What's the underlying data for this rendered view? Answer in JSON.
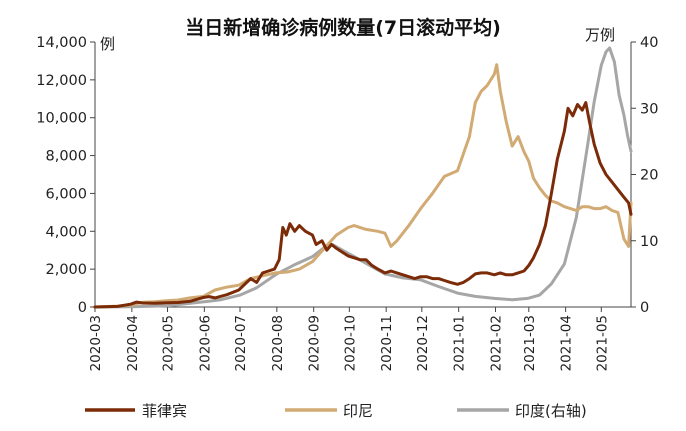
{
  "chart_data": {
    "type": "line",
    "title": "当日新增确诊病例数量(7日滚动平均)",
    "y_left": {
      "unit": "例",
      "min": 0,
      "max": 14000,
      "ticks": [
        "0",
        "2,000",
        "4,000",
        "6,000",
        "8,000",
        "10,000",
        "12,000",
        "14,000"
      ]
    },
    "y_right": {
      "unit": "万例",
      "min": 0,
      "max": 40,
      "ticks": [
        "0",
        "10",
        "20",
        "30",
        "40"
      ]
    },
    "x_ticks": [
      "2020-03",
      "2020-04",
      "2020-05",
      "2020-06",
      "2020-07",
      "2020-08",
      "2020-09",
      "2020-10",
      "2020-11",
      "2020-12",
      "2021-01",
      "2021-02",
      "2021-03",
      "2021-04",
      "2021-05"
    ],
    "x_range": [
      "2020-03-01",
      "2021-05-26"
    ],
    "series": [
      {
        "name": "菲律宾",
        "color": "#7B2B07",
        "axis": "left",
        "points": [
          [
            "2020-03-01",
            0
          ],
          [
            "2020-03-20",
            30
          ],
          [
            "2020-03-31",
            150
          ],
          [
            "2020-04-05",
            260
          ],
          [
            "2020-04-10",
            210
          ],
          [
            "2020-04-20",
            200
          ],
          [
            "2020-05-01",
            220
          ],
          [
            "2020-05-10",
            240
          ],
          [
            "2020-05-20",
            300
          ],
          [
            "2020-05-31",
            500
          ],
          [
            "2020-06-05",
            550
          ],
          [
            "2020-06-10",
            480
          ],
          [
            "2020-06-20",
            650
          ],
          [
            "2020-06-30",
            900
          ],
          [
            "2020-07-05",
            1200
          ],
          [
            "2020-07-10",
            1500
          ],
          [
            "2020-07-15",
            1300
          ],
          [
            "2020-07-20",
            1800
          ],
          [
            "2020-07-25",
            1900
          ],
          [
            "2020-07-30",
            2000
          ],
          [
            "2020-08-03",
            2500
          ],
          [
            "2020-08-06",
            4200
          ],
          [
            "2020-08-09",
            3800
          ],
          [
            "2020-08-12",
            4400
          ],
          [
            "2020-08-16",
            4000
          ],
          [
            "2020-08-20",
            4300
          ],
          [
            "2020-08-25",
            4000
          ],
          [
            "2020-08-31",
            3800
          ],
          [
            "2020-09-03",
            3300
          ],
          [
            "2020-09-08",
            3500
          ],
          [
            "2020-09-12",
            3000
          ],
          [
            "2020-09-16",
            3300
          ],
          [
            "2020-09-20",
            3100
          ],
          [
            "2020-09-25",
            2900
          ],
          [
            "2020-09-30",
            2700
          ],
          [
            "2020-10-05",
            2600
          ],
          [
            "2020-10-10",
            2500
          ],
          [
            "2020-10-15",
            2500
          ],
          [
            "2020-10-20",
            2200
          ],
          [
            "2020-10-25",
            2000
          ],
          [
            "2020-10-31",
            1800
          ],
          [
            "2020-11-05",
            1900
          ],
          [
            "2020-11-10",
            1800
          ],
          [
            "2020-11-15",
            1700
          ],
          [
            "2020-11-20",
            1600
          ],
          [
            "2020-11-25",
            1500
          ],
          [
            "2020-11-30",
            1600
          ],
          [
            "2020-12-05",
            1600
          ],
          [
            "2020-12-10",
            1500
          ],
          [
            "2020-12-15",
            1500
          ],
          [
            "2020-12-20",
            1400
          ],
          [
            "2020-12-25",
            1300
          ],
          [
            "2020-12-31",
            1200
          ],
          [
            "2021-01-05",
            1300
          ],
          [
            "2021-01-10",
            1500
          ],
          [
            "2021-01-15",
            1750
          ],
          [
            "2021-01-20",
            1800
          ],
          [
            "2021-01-25",
            1800
          ],
          [
            "2021-01-31",
            1700
          ],
          [
            "2021-02-05",
            1800
          ],
          [
            "2021-02-10",
            1700
          ],
          [
            "2021-02-15",
            1700
          ],
          [
            "2021-02-20",
            1800
          ],
          [
            "2021-02-25",
            1900
          ],
          [
            "2021-03-01",
            2200
          ],
          [
            "2021-03-05",
            2600
          ],
          [
            "2021-03-10",
            3300
          ],
          [
            "2021-03-15",
            4300
          ],
          [
            "2021-03-20",
            6000
          ],
          [
            "2021-03-25",
            7800
          ],
          [
            "2021-03-31",
            9300
          ],
          [
            "2021-04-03",
            10500
          ],
          [
            "2021-04-07",
            10100
          ],
          [
            "2021-04-11",
            10700
          ],
          [
            "2021-04-15",
            10400
          ],
          [
            "2021-04-18",
            10800
          ],
          [
            "2021-04-21",
            9800
          ],
          [
            "2021-04-25",
            8600
          ],
          [
            "2021-04-30",
            7600
          ],
          [
            "2021-05-05",
            7000
          ],
          [
            "2021-05-10",
            6600
          ],
          [
            "2021-05-15",
            6200
          ],
          [
            "2021-05-20",
            5800
          ],
          [
            "2021-05-24",
            5500
          ],
          [
            "2021-05-26",
            4900
          ]
        ]
      },
      {
        "name": "印尼",
        "color": "#D2AA73",
        "axis": "left",
        "points": [
          [
            "2020-03-01",
            0
          ],
          [
            "2020-03-20",
            50
          ],
          [
            "2020-03-31",
            100
          ],
          [
            "2020-04-10",
            250
          ],
          [
            "2020-04-20",
            280
          ],
          [
            "2020-04-30",
            330
          ],
          [
            "2020-05-10",
            370
          ],
          [
            "2020-05-20",
            480
          ],
          [
            "2020-05-31",
            560
          ],
          [
            "2020-06-10",
            900
          ],
          [
            "2020-06-20",
            1050
          ],
          [
            "2020-06-30",
            1150
          ],
          [
            "2020-07-10",
            1500
          ],
          [
            "2020-07-20",
            1650
          ],
          [
            "2020-07-31",
            1800
          ],
          [
            "2020-08-10",
            1850
          ],
          [
            "2020-08-20",
            2000
          ],
          [
            "2020-08-31",
            2400
          ],
          [
            "2020-09-10",
            3100
          ],
          [
            "2020-09-20",
            3800
          ],
          [
            "2020-09-30",
            4200
          ],
          [
            "2020-10-05",
            4300
          ],
          [
            "2020-10-15",
            4100
          ],
          [
            "2020-10-25",
            4000
          ],
          [
            "2020-10-31",
            3900
          ],
          [
            "2020-11-05",
            3200
          ],
          [
            "2020-11-10",
            3500
          ],
          [
            "2020-11-20",
            4300
          ],
          [
            "2020-11-30",
            5200
          ],
          [
            "2020-12-10",
            6000
          ],
          [
            "2020-12-20",
            6900
          ],
          [
            "2020-12-31",
            7200
          ],
          [
            "2021-01-05",
            8100
          ],
          [
            "2021-01-10",
            9000
          ],
          [
            "2021-01-15",
            10800
          ],
          [
            "2021-01-20",
            11400
          ],
          [
            "2021-01-25",
            11700
          ],
          [
            "2021-01-31",
            12300
          ],
          [
            "2021-02-02",
            12800
          ],
          [
            "2021-02-05",
            11400
          ],
          [
            "2021-02-10",
            9800
          ],
          [
            "2021-02-15",
            8500
          ],
          [
            "2021-02-20",
            9000
          ],
          [
            "2021-02-25",
            8200
          ],
          [
            "2021-03-01",
            7700
          ],
          [
            "2021-03-05",
            6800
          ],
          [
            "2021-03-10",
            6300
          ],
          [
            "2021-03-15",
            5900
          ],
          [
            "2021-03-20",
            5600
          ],
          [
            "2021-03-25",
            5500
          ],
          [
            "2021-03-31",
            5300
          ],
          [
            "2021-04-05",
            5200
          ],
          [
            "2021-04-10",
            5100
          ],
          [
            "2021-04-15",
            5300
          ],
          [
            "2021-04-20",
            5300
          ],
          [
            "2021-04-25",
            5200
          ],
          [
            "2021-04-30",
            5200
          ],
          [
            "2021-05-05",
            5300
          ],
          [
            "2021-05-10",
            5100
          ],
          [
            "2021-05-15",
            5000
          ],
          [
            "2021-05-20",
            3600
          ],
          [
            "2021-05-24",
            3200
          ],
          [
            "2021-05-26",
            5500
          ]
        ]
      },
      {
        "name": "印度(右轴)",
        "color": "#A6A6A6",
        "axis": "right",
        "points": [
          [
            "2020-03-01",
            0
          ],
          [
            "2020-04-01",
            0.05
          ],
          [
            "2020-05-01",
            0.2
          ],
          [
            "2020-06-01",
            0.8
          ],
          [
            "2020-06-15",
            1.1
          ],
          [
            "2020-07-01",
            1.8
          ],
          [
            "2020-07-15",
            2.9
          ],
          [
            "2020-08-01",
            5.0
          ],
          [
            "2020-08-15",
            6.3
          ],
          [
            "2020-08-31",
            7.6
          ],
          [
            "2020-09-10",
            9.0
          ],
          [
            "2020-09-17",
            9.4
          ],
          [
            "2020-09-25",
            8.6
          ],
          [
            "2020-10-05",
            7.6
          ],
          [
            "2020-10-15",
            6.6
          ],
          [
            "2020-10-31",
            5.0
          ],
          [
            "2020-11-15",
            4.4
          ],
          [
            "2020-11-30",
            4.1
          ],
          [
            "2020-12-15",
            3.1
          ],
          [
            "2020-12-31",
            2.1
          ],
          [
            "2021-01-15",
            1.6
          ],
          [
            "2021-01-31",
            1.3
          ],
          [
            "2021-02-15",
            1.1
          ],
          [
            "2021-02-28",
            1.3
          ],
          [
            "2021-03-10",
            1.8
          ],
          [
            "2021-03-20",
            3.5
          ],
          [
            "2021-03-31",
            6.5
          ],
          [
            "2021-04-10",
            13.5
          ],
          [
            "2021-04-20",
            25.0
          ],
          [
            "2021-04-25",
            31.0
          ],
          [
            "2021-05-01",
            36.5
          ],
          [
            "2021-05-05",
            38.5
          ],
          [
            "2021-05-08",
            39.1
          ],
          [
            "2021-05-12",
            37.0
          ],
          [
            "2021-05-16",
            32.0
          ],
          [
            "2021-05-20",
            29.0
          ],
          [
            "2021-05-23",
            26.0
          ],
          [
            "2021-05-26",
            23.5
          ]
        ]
      }
    ]
  }
}
